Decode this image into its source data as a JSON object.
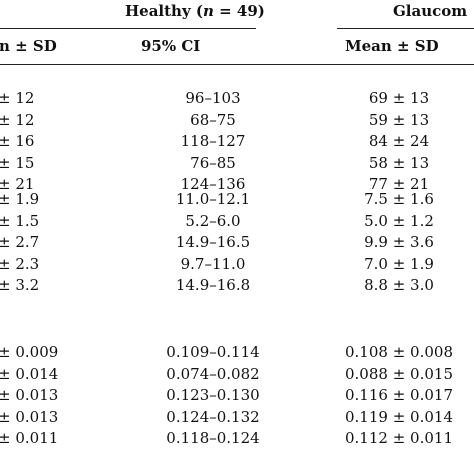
{
  "table": {
    "group_headers": {
      "healthy": [
        "Healthy (",
        "n",
        " = 49)"
      ],
      "glaucoma": "Glaucom"
    },
    "column_headers": {
      "col1": "n ± SD",
      "col2": "95% CI",
      "col3": "Mean ± SD"
    },
    "sections": [
      {
        "rows": [
          {
            "c1": "± 12",
            "c2": "96–103",
            "c3": "69 ± 13"
          },
          {
            "c1": "± 12",
            "c2": "68–75",
            "c3": "59 ± 13"
          },
          {
            "c1": "± 16",
            "c2": "118–127",
            "c3": "84 ± 24"
          },
          {
            "c1": "± 15",
            "c2": "76–85",
            "c3": "58 ± 13"
          },
          {
            "c1": "± 21",
            "c2": "124–136",
            "c3": "77 ± 21"
          }
        ]
      },
      {
        "rows": [
          {
            "c1": "± 1.9",
            "c2": "11.0–12.1",
            "c3": "7.5 ± 1.6"
          },
          {
            "c1": "± 1.5",
            "c2": "5.2–6.0",
            "c3": "5.0 ± 1.2"
          },
          {
            "c1": "± 2.7",
            "c2": "14.9–16.5",
            "c3": "9.9 ± 3.6"
          },
          {
            "c1": "± 2.3",
            "c2": "9.7–11.0",
            "c3": "7.0 ± 1.9"
          },
          {
            "c1": "± 3.2",
            "c2": "14.9–16.8",
            "c3": "8.8 ± 3.0"
          }
        ]
      },
      {
        "rows": [
          {
            "c1": "± 0.009",
            "c2": "0.109–0.114",
            "c3": "0.108 ± 0.008"
          },
          {
            "c1": "± 0.014",
            "c2": "0.074–0.082",
            "c3": "0.088 ± 0.015"
          },
          {
            "c1": "± 0.013",
            "c2": "0.123–0.130",
            "c3": "0.116 ± 0.017"
          },
          {
            "c1": "± 0.013",
            "c2": "0.124–0.132",
            "c3": "0.119 ± 0.014"
          },
          {
            "c1": "± 0.011",
            "c2": "0.118–0.124",
            "c3": "0.112 ± 0.011"
          }
        ]
      }
    ]
  }
}
